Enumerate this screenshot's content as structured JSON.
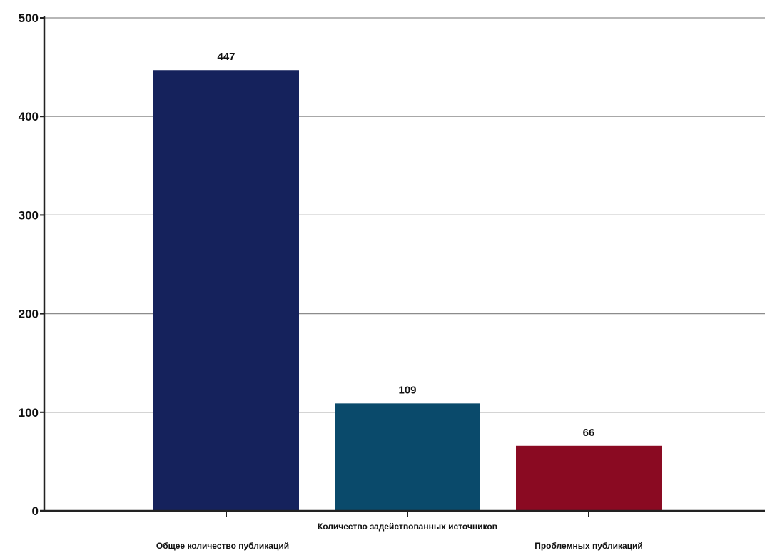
{
  "chart_data": {
    "type": "bar",
    "title": "",
    "xlabel": "",
    "ylabel": "",
    "ylim": [
      0,
      500
    ],
    "yticks": [
      0,
      100,
      200,
      300,
      400,
      500
    ],
    "grid": true,
    "categories": [
      "Общее количество публикаций",
      "Количество задействованных источников",
      "Проблемных публикаций"
    ],
    "values": [
      447,
      109,
      66
    ],
    "data_labels": [
      "447",
      "109",
      "66"
    ],
    "colors": [
      "#15225c",
      "#0a4a6b",
      "#8a0a22"
    ]
  }
}
